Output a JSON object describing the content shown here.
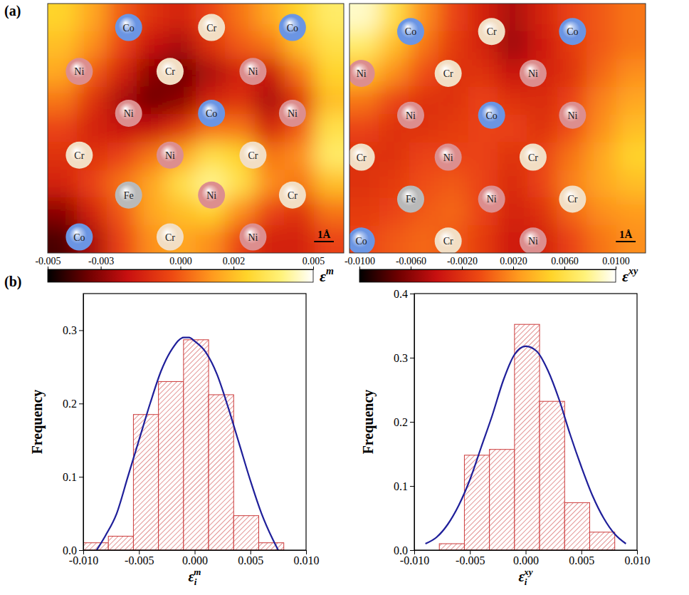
{
  "chart_data": [
    {
      "type": "heatmap",
      "panel_label": "(a)",
      "tick_labels": false,
      "xlim": [
        0,
        15
      ],
      "ylim": [
        0,
        12.5
      ],
      "cells": [
        [
          0.0025,
          0.0015,
          0.0,
          -0.001,
          -0.0015,
          -0.0005,
          0.0005,
          0.0015,
          0.0025,
          0.0035
        ],
        [
          0.002,
          0.001,
          -0.0005,
          -0.002,
          -0.0025,
          -0.001,
          0.0,
          0.0005,
          0.002,
          0.003
        ],
        [
          0.0015,
          0.0,
          -0.0015,
          -0.003,
          -0.0035,
          -0.0025,
          -0.0015,
          -0.002,
          0.0005,
          0.0025
        ],
        [
          0.0005,
          -0.001,
          -0.0025,
          -0.0035,
          -0.003,
          -0.0015,
          -0.001,
          -0.0025,
          -0.001,
          0.002
        ],
        [
          -0.0005,
          -0.0015,
          -0.002,
          -0.002,
          -0.001,
          0.0005,
          0.0005,
          -0.0015,
          0.0,
          0.003
        ],
        [
          -0.001,
          -0.001,
          -0.0005,
          0.0005,
          0.0015,
          0.003,
          0.0025,
          0.0005,
          0.001,
          0.0035
        ],
        [
          -0.0015,
          -0.0005,
          0.0005,
          0.0015,
          0.003,
          0.004,
          0.003,
          0.001,
          0.0005,
          0.002
        ],
        [
          -0.003,
          -0.0015,
          0.0,
          0.0015,
          0.002,
          0.0025,
          0.001,
          -0.0005,
          -0.001,
          0.0005
        ],
        [
          -0.004,
          -0.0025,
          -0.0005,
          0.001,
          0.0015,
          0.001,
          -0.0005,
          -0.0015,
          -0.0015,
          -0.0005
        ]
      ],
      "colorbar": {
        "range": [
          -0.005,
          0.005
        ],
        "ticks": [
          -0.005,
          -0.003,
          {
            "value": 0,
            "label": "0.000"
          },
          0.002,
          0.005
        ],
        "title": {
          "text": "ε",
          "superscript": "m"
        }
      },
      "atoms": [
        {
          "label": "Co",
          "x": 4.1,
          "y": 11.3,
          "color": "#6b95e3"
        },
        {
          "label": "Cr",
          "x": 8.3,
          "y": 11.3,
          "color": "#f2dec4"
        },
        {
          "label": "Co",
          "x": 12.4,
          "y": 11.3,
          "color": "#6b95e3"
        },
        {
          "label": "Ni",
          "x": 1.6,
          "y": 9.1,
          "color": "#dc8e8e"
        },
        {
          "label": "Cr",
          "x": 6.2,
          "y": 9.1,
          "color": "#f2dec4"
        },
        {
          "label": "Ni",
          "x": 10.4,
          "y": 9.1,
          "color": "#dc8e8e"
        },
        {
          "label": "Ni",
          "x": 4.1,
          "y": 7.0,
          "color": "#dc8e8e"
        },
        {
          "label": "Co",
          "x": 8.3,
          "y": 7.0,
          "color": "#6b95e3"
        },
        {
          "label": "Ni",
          "x": 12.4,
          "y": 7.0,
          "color": "#dc8e8e"
        },
        {
          "label": "Cr",
          "x": 1.6,
          "y": 4.9,
          "color": "#f2dec4"
        },
        {
          "label": "Ni",
          "x": 6.2,
          "y": 4.9,
          "color": "#dc8e8e"
        },
        {
          "label": "Cr",
          "x": 10.4,
          "y": 4.9,
          "color": "#f2dec4"
        },
        {
          "label": "Fe",
          "x": 4.1,
          "y": 2.9,
          "color": "#b9b9b9"
        },
        {
          "label": "Ni",
          "x": 8.3,
          "y": 2.9,
          "color": "#dc8e8e"
        },
        {
          "label": "Cr",
          "x": 12.4,
          "y": 2.9,
          "color": "#f2dec4"
        },
        {
          "label": "Co",
          "x": 1.6,
          "y": 0.8,
          "color": "#6b95e3"
        },
        {
          "label": "Cr",
          "x": 6.2,
          "y": 0.8,
          "color": "#f2dec4"
        },
        {
          "label": "Ni",
          "x": 10.4,
          "y": 0.8,
          "color": "#dc8e8e"
        }
      ],
      "scale_bar": {
        "length": 1,
        "label": "1Å"
      }
    },
    {
      "type": "heatmap",
      "tick_labels": false,
      "xlim": [
        0,
        15
      ],
      "ylim": [
        0,
        12.5
      ],
      "cells": [
        [
          0.009,
          0.006,
          0.002,
          -0.001,
          -0.003,
          -0.005,
          -0.003,
          -0.001,
          0.0,
          0.001
        ],
        [
          0.007,
          0.004,
          0.001,
          -0.0015,
          -0.003,
          -0.0055,
          -0.0035,
          -0.0015,
          0.0,
          0.001
        ],
        [
          0.004,
          0.002,
          -0.0005,
          -0.002,
          -0.002,
          -0.004,
          -0.003,
          -0.002,
          0.0005,
          0.002
        ],
        [
          0.001,
          -0.001,
          -0.002,
          -0.002,
          -0.001,
          -0.002,
          -0.0025,
          -0.001,
          0.0015,
          0.003
        ],
        [
          -0.001,
          -0.002,
          -0.002,
          -0.0015,
          -0.001,
          -0.001,
          -0.002,
          -0.0005,
          0.002,
          0.004
        ],
        [
          -0.002,
          -0.002,
          -0.001,
          -0.001,
          -0.001,
          -0.002,
          -0.001,
          0.001,
          0.003,
          0.005
        ],
        [
          -0.002,
          -0.0015,
          -0.0005,
          0.0,
          -0.001,
          -0.0025,
          -0.001,
          0.0015,
          0.003,
          0.004
        ],
        [
          -0.0015,
          -0.001,
          0.0,
          0.0005,
          -0.001,
          -0.003,
          -0.002,
          0.0005,
          0.002,
          0.0025
        ],
        [
          -0.001,
          0.0,
          0.0005,
          0.0,
          -0.0015,
          -0.0035,
          -0.003,
          -0.001,
          0.001,
          0.002
        ]
      ],
      "colorbar": {
        "range": [
          -0.01,
          0.01
        ],
        "ticks": [
          {
            "value": -0.01,
            "label": "-0.0100"
          },
          {
            "value": -0.006,
            "label": "-0.0060"
          },
          {
            "value": -0.002,
            "label": "-0.0020"
          },
          {
            "value": 0.002,
            "label": "0.0020"
          },
          {
            "value": 0.006,
            "label": "0.0060"
          },
          {
            "value": 0.01,
            "label": "0.0100"
          }
        ],
        "title": {
          "text": "ε",
          "superscript": "xy"
        }
      },
      "atoms": [
        {
          "label": "Co",
          "x": 3.1,
          "y": 11.1,
          "color": "#6b95e3"
        },
        {
          "label": "Cr",
          "x": 7.2,
          "y": 11.1,
          "color": "#f2dec4"
        },
        {
          "label": "Co",
          "x": 11.3,
          "y": 11.1,
          "color": "#6b95e3"
        },
        {
          "label": "Ni",
          "x": 0.6,
          "y": 9.0,
          "color": "#dc8e8e"
        },
        {
          "label": "Cr",
          "x": 5.0,
          "y": 9.0,
          "color": "#f2dec4"
        },
        {
          "label": "Ni",
          "x": 9.3,
          "y": 9.0,
          "color": "#dc8e8e"
        },
        {
          "label": "Ni",
          "x": 3.1,
          "y": 6.9,
          "color": "#dc8e8e"
        },
        {
          "label": "Co",
          "x": 7.2,
          "y": 6.9,
          "color": "#6b95e3"
        },
        {
          "label": "Ni",
          "x": 11.3,
          "y": 6.9,
          "color": "#dc8e8e"
        },
        {
          "label": "Cr",
          "x": 0.6,
          "y": 4.8,
          "color": "#f2dec4"
        },
        {
          "label": "Ni",
          "x": 5.0,
          "y": 4.8,
          "color": "#dc8e8e"
        },
        {
          "label": "Cr",
          "x": 9.3,
          "y": 4.8,
          "color": "#f2dec4"
        },
        {
          "label": "Fe",
          "x": 3.1,
          "y": 2.7,
          "color": "#b9b9b9"
        },
        {
          "label": "Ni",
          "x": 7.2,
          "y": 2.7,
          "color": "#dc8e8e"
        },
        {
          "label": "Cr",
          "x": 11.3,
          "y": 2.7,
          "color": "#f2dec4"
        },
        {
          "label": "Co",
          "x": 0.6,
          "y": 0.6,
          "color": "#6b95e3"
        },
        {
          "label": "Cr",
          "x": 5.0,
          "y": 0.6,
          "color": "#f2dec4"
        },
        {
          "label": "Ni",
          "x": 9.3,
          "y": 0.6,
          "color": "#dc8e8e"
        }
      ],
      "scale_bar": {
        "length": 1,
        "label": "1Å"
      }
    },
    {
      "type": "histogram",
      "panel_label": "(b)",
      "color": "#cc3b3b",
      "bins": [
        -0.01,
        -0.00775,
        -0.0055,
        -0.00325,
        -0.001,
        0.00125,
        0.0035,
        0.00575,
        0.008
      ],
      "values": [
        0.01,
        0.019,
        0.185,
        0.23,
        0.287,
        0.212,
        0.047,
        0.01
      ],
      "fit": {
        "color": "#1f1f9a",
        "x": [
          -0.0088,
          -0.008,
          -0.007,
          -0.006,
          -0.005,
          -0.004,
          -0.003,
          -0.002,
          -0.001,
          -0.0005,
          0.0,
          0.001,
          0.002,
          0.003,
          0.004,
          0.005,
          0.006,
          0.007,
          0.0075
        ],
        "values": [
          0.0,
          0.02,
          0.05,
          0.1,
          0.15,
          0.2,
          0.245,
          0.275,
          0.29,
          0.29,
          0.285,
          0.27,
          0.24,
          0.195,
          0.145,
          0.095,
          0.05,
          0.015,
          0.0
        ]
      },
      "xlim": [
        -0.01,
        0.01
      ],
      "xticks": [
        {
          "value": -0.01,
          "label": "-0.010"
        },
        -0.005,
        {
          "value": 0,
          "label": "0.000"
        },
        0.005,
        {
          "value": 0.01,
          "label": "0.010"
        }
      ],
      "ylim": [
        0,
        0.35
      ],
      "yticks": [
        {
          "value": 0,
          "label": "0.0"
        },
        0.1,
        0.2,
        0.3
      ],
      "x_label": {
        "text": "ε",
        "subscript": "i",
        "superscript": "m"
      },
      "y_label": "Frequency"
    },
    {
      "type": "histogram",
      "color": "#cc3b3b",
      "bins": [
        -0.00775,
        -0.0055,
        -0.00325,
        -0.001,
        0.00125,
        0.0035,
        0.00575,
        0.008
      ],
      "values": [
        0.01,
        0.148,
        0.157,
        0.352,
        0.232,
        0.074,
        0.028
      ],
      "fit": {
        "color": "#1f1f9a",
        "x": [
          -0.009,
          -0.008,
          -0.007,
          -0.006,
          -0.005,
          -0.004,
          -0.003,
          -0.002,
          -0.001,
          0.0,
          0.001,
          0.002,
          0.003,
          0.004,
          0.005,
          0.006,
          0.007,
          0.008,
          0.009
        ],
        "values": [
          0.01,
          0.02,
          0.04,
          0.07,
          0.11,
          0.16,
          0.21,
          0.265,
          0.305,
          0.318,
          0.31,
          0.28,
          0.235,
          0.18,
          0.13,
          0.085,
          0.05,
          0.025,
          0.01
        ]
      },
      "xlim": [
        -0.01,
        0.01
      ],
      "xticks": [
        {
          "value": -0.01,
          "label": "-0.010"
        },
        -0.005,
        {
          "value": 0,
          "label": "0.000"
        },
        0.005,
        {
          "value": 0.01,
          "label": "0.010"
        }
      ],
      "ylim": [
        0,
        0.4
      ],
      "yticks": [
        {
          "value": 0,
          "label": "0.0"
        },
        0.1,
        0.2,
        0.3,
        0.4
      ],
      "x_label": {
        "text": "ε",
        "subscript": "i",
        "superscript": "xy"
      },
      "y_label": "Frequency"
    }
  ]
}
